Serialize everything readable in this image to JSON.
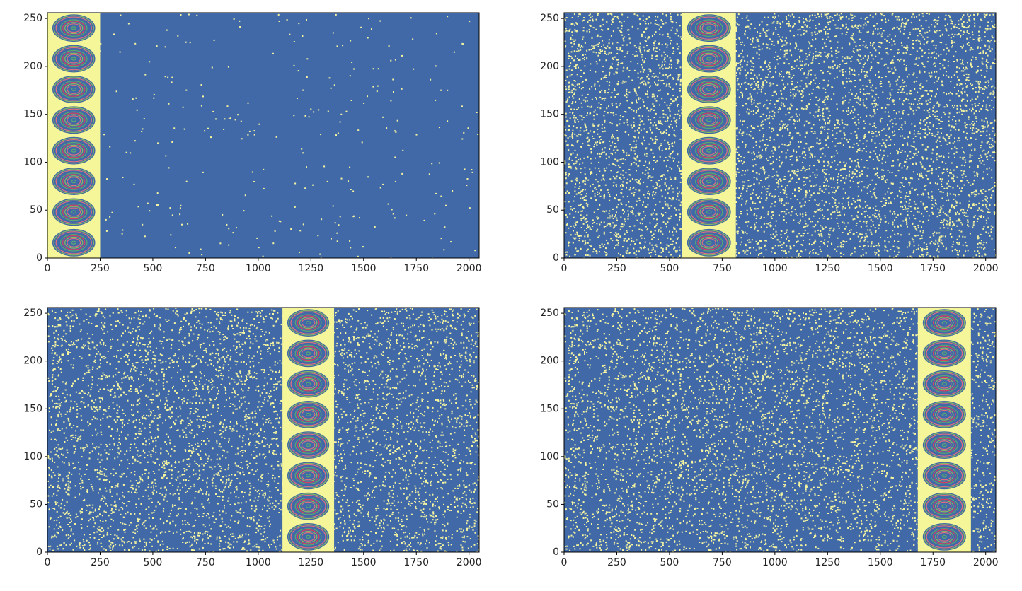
{
  "chart_data": [
    {
      "type": "heatmap",
      "xlim": [
        0,
        2048
      ],
      "ylim": [
        0,
        256
      ],
      "xticks": [
        0,
        250,
        500,
        750,
        1000,
        1250,
        1500,
        1750,
        2000
      ],
      "yticks": [
        0,
        50,
        100,
        150,
        200,
        250
      ],
      "band": [
        0,
        250
      ],
      "noise_density": 0.006,
      "color": "#4169a8",
      "noise_color": "#f5f5a0"
    },
    {
      "type": "heatmap",
      "xlim": [
        0,
        2048
      ],
      "ylim": [
        0,
        256
      ],
      "xticks": [
        0,
        250,
        500,
        750,
        1000,
        1250,
        1500,
        1750,
        2000
      ],
      "yticks": [
        0,
        50,
        100,
        150,
        200,
        250
      ],
      "band": [
        560,
        815
      ],
      "noise_density": 0.12,
      "color": "#4169a8",
      "noise_color": "#f5f5a0"
    },
    {
      "type": "heatmap",
      "xlim": [
        0,
        2048
      ],
      "ylim": [
        0,
        256
      ],
      "xticks": [
        0,
        250,
        500,
        750,
        1000,
        1250,
        1500,
        1750,
        2000
      ],
      "yticks": [
        0,
        50,
        100,
        150,
        200,
        250
      ],
      "band": [
        1115,
        1360
      ],
      "noise_density": 0.12,
      "color": "#4169a8",
      "noise_color": "#f5f5a0"
    },
    {
      "type": "heatmap",
      "xlim": [
        0,
        2048
      ],
      "ylim": [
        0,
        256
      ],
      "xticks": [
        0,
        250,
        500,
        750,
        1000,
        1250,
        1500,
        1750,
        2000
      ],
      "yticks": [
        0,
        50,
        100,
        150,
        200,
        250
      ],
      "band": [
        1678,
        1930
      ],
      "noise_density": 0.12,
      "color": "#4169a8",
      "noise_color": "#f5f5a0"
    }
  ]
}
